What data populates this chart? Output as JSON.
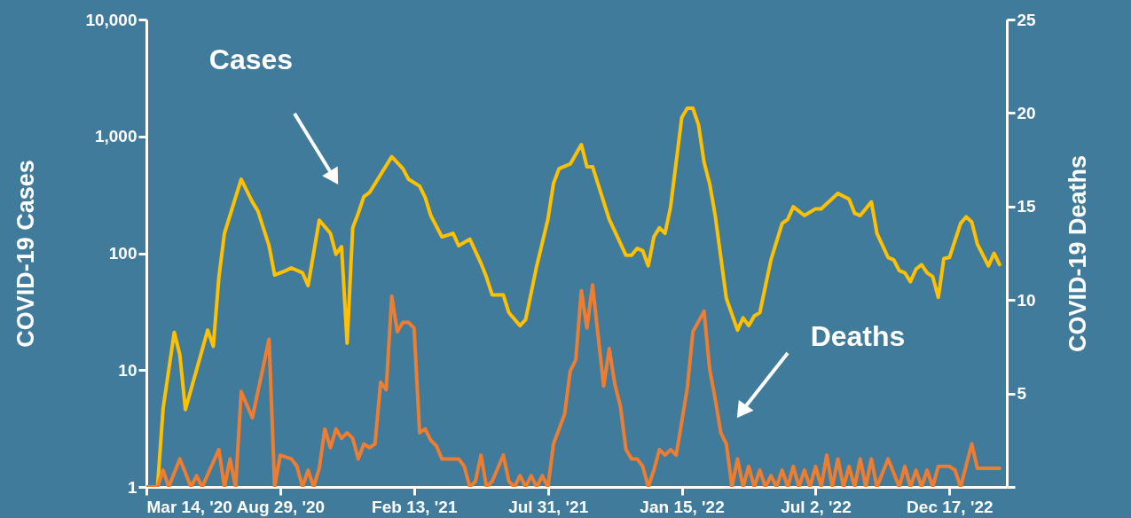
{
  "chart_data": {
    "type": "line",
    "ylabel": "COVID-19 Cases",
    "y2label": "COVID-19 Deaths",
    "log": "y",
    "grid": false,
    "xlim": [
      "2020-03-14",
      "2023-02-27"
    ],
    "xticks": [
      {
        "value": "2020-03-14",
        "label": "Mar 14, '20"
      },
      {
        "value": "2020-08-29",
        "label": "Aug 29,  '20"
      },
      {
        "value": "2021-02-13",
        "label": "Feb 13, '21"
      },
      {
        "value": "2021-07-31",
        "label": "Jul 31, '21"
      },
      {
        "value": "2022-01-15",
        "label": "Jan  15, '22"
      },
      {
        "value": "2022-07-02",
        "label": "Jul 2, '22"
      },
      {
        "value": "2022-12-17",
        "label": "Dec 17, '22"
      }
    ],
    "ylim": [
      1,
      10000
    ],
    "yticks": [
      1,
      10,
      100,
      {
        "value": 1000,
        "label": "1,000"
      },
      {
        "value": 10000,
        "label": "10,000"
      }
    ],
    "annotations": [
      "Cases",
      {
        "text": "Deaths",
        "x": "2022-04-02",
        "y": 4.6
      }
    ],
    "y2lim": [
      0,
      25
    ],
    "y2ticks": [
      {
        "value": 0,
        "label": null
      },
      5,
      10,
      15,
      20,
      25
    ],
    "series": [
      {
        "color": "#ffc000",
        "axis": "y",
        "x": [
          "2020-03-28",
          "2020-04-04",
          "2020-04-18",
          "2020-04-25",
          "2020-05-02",
          "2020-05-30",
          "2020-06-06",
          "2020-06-13",
          "2020-06-20",
          "2020-07-11",
          "2020-07-25",
          "2020-08-01",
          "2020-08-15",
          "2020-08-22",
          "2020-09-05",
          "2020-09-12",
          "2020-09-26",
          "2020-10-03",
          "2020-10-17",
          "2020-10-31",
          "2020-11-07",
          "2020-11-14",
          "2020-11-21",
          "2020-11-28",
          "2020-12-05",
          "2020-12-12",
          "2020-12-19",
          "2021-01-16",
          "2021-01-30",
          "2021-02-06",
          "2021-02-20",
          "2021-02-27",
          "2021-03-06",
          "2021-03-20",
          "2021-04-03",
          "2021-04-10",
          "2021-04-24",
          "2021-05-08",
          "2021-05-15",
          "2021-05-22",
          "2021-06-05",
          "2021-06-12",
          "2021-06-26",
          "2021-07-03",
          "2021-07-17",
          "2021-07-31",
          "2021-08-07",
          "2021-08-14",
          "2021-08-28",
          "2021-09-11",
          "2021-09-18",
          "2021-09-25",
          "2021-10-16",
          "2021-11-06",
          "2021-11-13",
          "2021-11-20",
          "2021-11-27",
          "2021-12-04",
          "2021-12-11",
          "2021-12-18",
          "2021-12-25",
          "2022-01-01",
          "2022-01-15",
          "2022-01-22",
          "2022-01-29",
          "2022-02-05",
          "2022-02-12",
          "2022-02-19",
          "2022-02-26",
          "2022-03-12",
          "2022-03-26",
          "2022-04-02",
          "2022-04-09",
          "2022-04-16",
          "2022-04-23",
          "2022-05-07",
          "2022-05-21",
          "2022-05-28",
          "2022-06-04",
          "2022-06-18",
          "2022-07-02",
          "2022-07-09",
          "2022-07-30",
          "2022-08-13",
          "2022-08-20",
          "2022-08-27",
          "2022-09-10",
          "2022-09-17",
          "2022-10-01",
          "2022-10-08",
          "2022-10-15",
          "2022-10-22",
          "2022-10-29",
          "2022-11-05",
          "2022-11-12",
          "2022-11-19",
          "2022-11-26",
          "2022-12-03",
          "2022-12-10",
          "2022-12-17",
          "2022-12-31",
          "2023-01-07",
          "2023-01-14",
          "2023-01-21",
          "2023-02-04",
          "2023-02-11",
          "2023-02-18"
        ],
        "values": [
          1,
          4.7,
          21,
          13.5,
          4.6,
          22,
          16,
          62,
          148,
          430,
          275,
          230,
          116,
          65,
          71,
          75,
          68,
          53,
          192,
          148,
          98,
          114,
          17,
          165,
          220,
          305,
          330,
          670,
          530,
          430,
          375,
          300,
          210,
          138,
          148,
          116,
          132,
          82,
          62,
          44,
          44,
          31,
          24,
          27,
          78,
          195,
          395,
          530,
          580,
          850,
          550,
          550,
          195,
          96,
          96,
          110,
          105,
          78,
          138,
          165,
          148,
          250,
          1450,
          1740,
          1740,
          1260,
          600,
          395,
          210,
          41,
          22,
          28,
          24,
          29,
          31,
          88,
          180,
          195,
          250,
          210,
          240,
          240,
          325,
          290,
          220,
          210,
          275,
          148,
          92,
          88,
          71,
          68,
          57,
          73,
          80,
          68,
          63,
          42,
          90,
          92,
          180,
          205,
          185,
          120,
          78,
          100,
          80
        ]
      },
      {
        "color": "#ed7d31",
        "axis": "y2",
        "x": [
          "2020-03-14",
          "2020-03-28",
          "2020-04-04",
          "2020-04-11",
          "2020-04-25",
          "2020-05-09",
          "2020-05-16",
          "2020-05-23",
          "2020-06-13",
          "2020-06-20",
          "2020-06-27",
          "2020-07-04",
          "2020-07-11",
          "2020-07-25",
          "2020-08-15",
          "2020-08-22",
          "2020-08-29",
          "2020-09-12",
          "2020-09-19",
          "2020-09-26",
          "2020-10-03",
          "2020-10-10",
          "2020-10-17",
          "2020-10-24",
          "2020-10-31",
          "2020-11-07",
          "2020-11-14",
          "2020-11-21",
          "2020-11-28",
          "2020-12-05",
          "2020-12-12",
          "2020-12-19",
          "2020-12-26",
          "2021-01-02",
          "2021-01-09",
          "2021-01-16",
          "2021-01-23",
          "2021-01-30",
          "2021-02-06",
          "2021-02-13",
          "2021-02-20",
          "2021-02-27",
          "2021-03-06",
          "2021-03-13",
          "2021-03-20",
          "2021-04-10",
          "2021-04-17",
          "2021-04-24",
          "2021-05-01",
          "2021-05-08",
          "2021-05-15",
          "2021-05-22",
          "2021-06-05",
          "2021-06-12",
          "2021-06-19",
          "2021-06-26",
          "2021-07-03",
          "2021-07-10",
          "2021-07-17",
          "2021-07-24",
          "2021-07-31",
          "2021-08-07",
          "2021-08-21",
          "2021-08-28",
          "2021-09-04",
          "2021-09-11",
          "2021-09-18",
          "2021-09-25",
          "2021-10-09",
          "2021-10-16",
          "2021-10-23",
          "2021-10-30",
          "2021-11-06",
          "2021-11-13",
          "2021-11-20",
          "2021-11-27",
          "2021-12-04",
          "2021-12-11",
          "2021-12-18",
          "2021-12-25",
          "2022-01-01",
          "2022-01-08",
          "2022-01-22",
          "2022-01-29",
          "2022-02-12",
          "2022-02-19",
          "2022-02-26",
          "2022-03-05",
          "2022-03-12",
          "2022-03-19",
          "2022-03-26",
          "2022-04-02",
          "2022-04-09",
          "2022-04-16",
          "2022-04-23",
          "2022-04-30",
          "2022-05-07",
          "2022-05-14",
          "2022-05-21",
          "2022-05-28",
          "2022-06-04",
          "2022-06-11",
          "2022-06-18",
          "2022-06-25",
          "2022-07-02",
          "2022-07-09",
          "2022-07-16",
          "2022-07-23",
          "2022-07-30",
          "2022-08-06",
          "2022-08-13",
          "2022-08-20",
          "2022-08-27",
          "2022-09-03",
          "2022-09-10",
          "2022-09-17",
          "2022-10-01",
          "2022-10-15",
          "2022-10-22",
          "2022-10-29",
          "2022-11-05",
          "2022-11-12",
          "2022-11-19",
          "2022-11-26",
          "2022-12-03",
          "2022-12-17",
          "2022-12-24",
          "2022-12-31",
          "2023-01-14",
          "2023-01-21",
          "2023-02-18"
        ],
        "values": [
          0,
          0,
          0.9,
          0,
          1.5,
          0,
          0.6,
          0,
          2.0,
          0,
          1.5,
          0,
          5.1,
          3.7,
          7.9,
          0,
          1.7,
          1.5,
          1.1,
          0,
          0.9,
          0,
          1.0,
          3.1,
          2.1,
          3.1,
          2.6,
          2.9,
          2.6,
          1.5,
          2.3,
          2.1,
          2.3,
          5.6,
          5.2,
          10.2,
          8.3,
          8.8,
          8.8,
          8.5,
          2.9,
          3.1,
          2.5,
          2.2,
          1.5,
          1.5,
          1.1,
          0,
          0.3,
          1.7,
          0,
          0.3,
          1.7,
          0.3,
          0,
          0.6,
          0,
          0.6,
          0,
          0.6,
          0,
          2.3,
          3.9,
          6.2,
          6.8,
          10.5,
          8.5,
          10.8,
          5.4,
          7.4,
          5.5,
          4.3,
          2.0,
          1.5,
          1.5,
          1.1,
          0,
          0.9,
          2.0,
          1.7,
          2.0,
          1.7,
          5.3,
          8.3,
          9.4,
          6.3,
          4.7,
          2.9,
          2.3,
          0,
          1.5,
          0,
          1.1,
          0,
          0.9,
          0,
          0.6,
          0,
          0.9,
          0,
          1.1,
          0,
          0.9,
          0,
          1.1,
          0,
          1.7,
          0,
          1.5,
          0,
          1.1,
          0,
          1.5,
          0,
          1.5,
          0,
          1.5,
          0,
          1.1,
          0,
          0.9,
          0,
          0.9,
          0,
          1.1,
          1.1,
          0.9,
          0,
          2.3,
          1.0,
          1.0
        ]
      }
    ]
  }
}
